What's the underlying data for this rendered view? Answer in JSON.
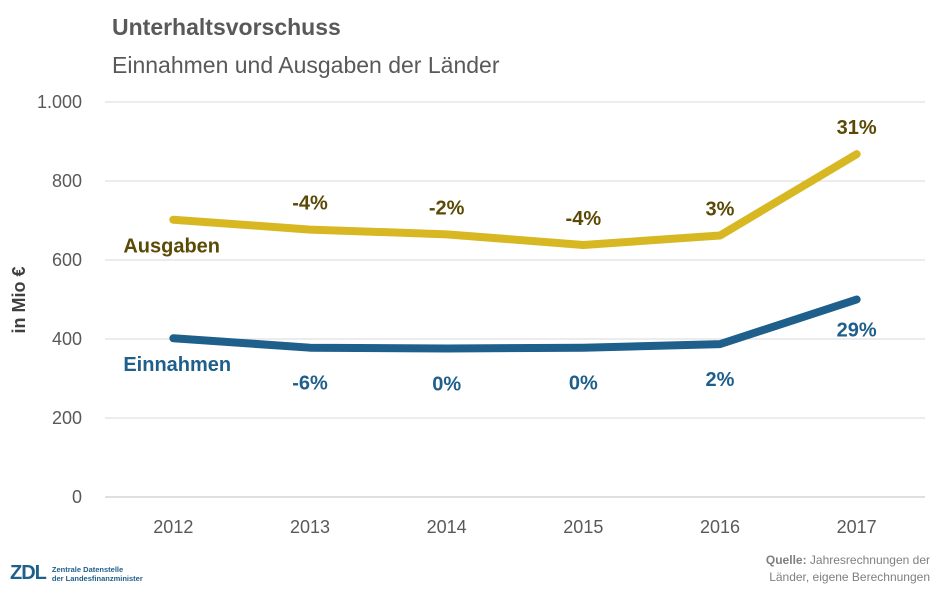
{
  "header": {
    "title": "Unterhaltsvorschuss",
    "subtitle": "Einnahmen und Ausgaben der Länder"
  },
  "chart_data": {
    "type": "line",
    "title": "Unterhaltsvorschuss",
    "subtitle": "Einnahmen und Ausgaben der Länder",
    "ylabel": "in Mio €",
    "xlabel": "",
    "ylim": [
      0,
      1000
    ],
    "yticks": [
      0,
      200,
      400,
      600,
      800,
      1000
    ],
    "ytick_labels": [
      "0",
      "200",
      "400",
      "600",
      "800",
      "1.000"
    ],
    "x": [
      "2012",
      "2013",
      "2014",
      "2015",
      "2016",
      "2017"
    ],
    "grid": true,
    "series": [
      {
        "name": "Ausgaben",
        "color": "#d7b823",
        "label_color": "#5a4a05",
        "values": [
          702,
          677,
          665,
          638,
          662,
          868
        ],
        "changes": [
          "",
          "-4%",
          "-2%",
          "-4%",
          "3%",
          "31%"
        ]
      },
      {
        "name": "Einnahmen",
        "color": "#1f5f8b",
        "label_color": "#1f5f8b",
        "values": [
          402,
          378,
          376,
          378,
          387,
          500
        ],
        "changes": [
          "",
          "-6%",
          "0%",
          "0%",
          "2%",
          "29%"
        ]
      }
    ]
  },
  "footer": {
    "logo_mark": "ZDL",
    "logo_line1": "Zentrale Datenstelle",
    "logo_line2": "der Landesfinanzminister",
    "source_label": "Quelle:",
    "source_line1": " Jahresrechnungen der",
    "source_line2": "Länder, eigene Berechnungen"
  }
}
